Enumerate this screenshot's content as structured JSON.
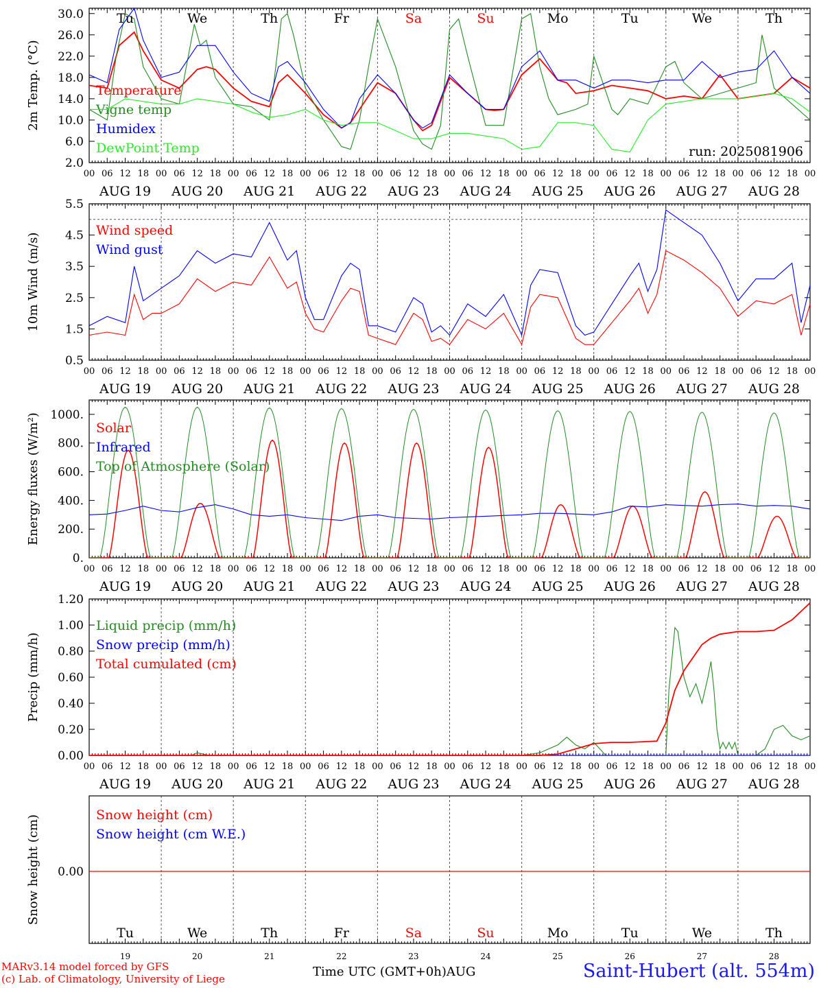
{
  "run_label": "run: 2025081906",
  "footer": {
    "model_line": "MARv3.14 model forced by GFS",
    "credit_line": "(c) Lab. of Climatology, University of Liege",
    "time_label": "Time UTC (GMT+0h)",
    "month_label": "AUG",
    "station": "Saint-Hubert (alt. 554m)"
  },
  "colors": {
    "red": "#ff0000",
    "dark_green": "#228b22",
    "blue": "#0000ff",
    "light_green": "#22ee22",
    "weekend": "#ff0000",
    "text": "#000000"
  },
  "days": [
    {
      "abbr": "Tu",
      "date": "AUG 19",
      "num": "19",
      "weekend": false
    },
    {
      "abbr": "We",
      "date": "AUG 20",
      "num": "20",
      "weekend": false
    },
    {
      "abbr": "Th",
      "date": "AUG 21",
      "num": "21",
      "weekend": false
    },
    {
      "abbr": "Fr",
      "date": "AUG 22",
      "num": "22",
      "weekend": false
    },
    {
      "abbr": "Sa",
      "date": "AUG 23",
      "num": "23",
      "weekend": true
    },
    {
      "abbr": "Su",
      "date": "AUG 24",
      "num": "24",
      "weekend": true
    },
    {
      "abbr": "Mo",
      "date": "AUG 25",
      "num": "25",
      "weekend": false
    },
    {
      "abbr": "Tu",
      "date": "AUG 26",
      "num": "26",
      "weekend": false
    },
    {
      "abbr": "We",
      "date": "AUG 27",
      "num": "27",
      "weekend": false
    },
    {
      "abbr": "Th",
      "date": "AUG 28",
      "num": "28",
      "weekend": false
    }
  ],
  "hour_ticks": [
    "00",
    "06",
    "12",
    "18"
  ],
  "chart_data": [
    {
      "id": "temperature",
      "type": "line",
      "ylabel": "2m Temp. (°C)",
      "ylim": [
        2,
        31
      ],
      "yticks": [
        "2.0",
        "6.0",
        "10.0",
        "14.0",
        "18.0",
        "22.0",
        "26.0",
        "30.0"
      ],
      "x_unit": "hours since AUG 19 00 UTC",
      "series": [
        {
          "name": "Temperature",
          "color": "#ff0000",
          "x": [
            0,
            6,
            10,
            15,
            18,
            24,
            30,
            36,
            39,
            42,
            48,
            54,
            60,
            63,
            66,
            72,
            78,
            84,
            87,
            90,
            96,
            102,
            108,
            111,
            114,
            120,
            126,
            132,
            135,
            138,
            144,
            150,
            156,
            159,
            162,
            168,
            174,
            180,
            186,
            192,
            198,
            204,
            210,
            216,
            222,
            228,
            234,
            240
          ],
          "y": [
            16.5,
            16,
            24,
            26.5,
            23,
            17.5,
            16,
            19.5,
            20,
            19.5,
            16,
            13.5,
            12.5,
            17,
            18.5,
            15,
            11,
            8.5,
            9.5,
            12,
            17,
            15,
            10,
            8,
            9,
            18,
            15,
            12,
            11.8,
            12,
            18.5,
            21.5,
            17.5,
            17,
            15,
            15.5,
            16.5,
            16,
            15.5,
            14,
            14.5,
            14,
            18.5,
            14,
            14.5,
            15,
            18,
            16
          ]
        },
        {
          "name": "Vigne temp",
          "color": "#228b22",
          "x": [
            0,
            6,
            9,
            12,
            15,
            18,
            24,
            30,
            33,
            35,
            37,
            39,
            42,
            48,
            54,
            60,
            64,
            66,
            68,
            72,
            78,
            84,
            87,
            90,
            93,
            96,
            102,
            108,
            111,
            114,
            117,
            120,
            123,
            126,
            132,
            138,
            144,
            147,
            150,
            153,
            156,
            162,
            166,
            168,
            174,
            176,
            180,
            186,
            192,
            195,
            198,
            204,
            210,
            216,
            222,
            224,
            228,
            234,
            240
          ],
          "y": [
            12,
            10,
            22,
            30,
            29,
            20,
            14,
            13,
            22,
            28,
            24,
            25,
            18,
            13,
            12.5,
            10,
            29,
            30,
            26,
            16,
            10,
            5,
            4.5,
            10,
            20,
            29,
            20,
            8,
            5.5,
            4.5,
            9,
            27,
            29,
            22,
            9,
            9,
            29,
            30,
            20,
            14,
            11,
            12,
            13,
            22,
            12,
            11,
            14,
            13,
            20,
            21,
            17,
            14,
            15,
            16,
            17,
            26,
            16,
            13,
            10
          ]
        },
        {
          "name": "Humidex",
          "color": "#0000ff",
          "x": [
            0,
            6,
            10,
            15,
            18,
            24,
            30,
            36,
            42,
            48,
            54,
            60,
            63,
            66,
            72,
            78,
            84,
            87,
            90,
            96,
            102,
            108,
            111,
            114,
            120,
            126,
            132,
            138,
            144,
            150,
            156,
            162,
            168,
            174,
            180,
            186,
            192,
            198,
            204,
            210,
            216,
            222,
            228,
            234,
            240
          ],
          "y": [
            18.5,
            17,
            27,
            31,
            25,
            18,
            19,
            24,
            24,
            19,
            15,
            13.5,
            20,
            21,
            17,
            12,
            8.5,
            9.5,
            14,
            18.5,
            15,
            10,
            8.5,
            9.5,
            18.5,
            15,
            12,
            12,
            20,
            23,
            17.5,
            17.5,
            16,
            17.5,
            17.5,
            17,
            17.5,
            17.5,
            21,
            18,
            19,
            19.5,
            23,
            18,
            15
          ]
        },
        {
          "name": "DewPoint Temp",
          "color": "#22ee22",
          "x": [
            0,
            6,
            12,
            18,
            24,
            30,
            36,
            42,
            48,
            54,
            60,
            66,
            72,
            78,
            84,
            90,
            96,
            102,
            108,
            114,
            120,
            126,
            132,
            138,
            144,
            150,
            156,
            162,
            168,
            174,
            180,
            186,
            192,
            198,
            204,
            210,
            216,
            222,
            228,
            234,
            240
          ],
          "y": [
            12,
            12,
            14,
            13.5,
            13,
            13,
            14,
            13.5,
            13,
            11.5,
            10.5,
            11,
            12,
            10,
            9,
            9.5,
            9.5,
            8,
            6.5,
            6.5,
            7.5,
            7.5,
            7,
            6.5,
            4.5,
            5,
            9.5,
            9.5,
            9,
            4.5,
            4,
            10,
            13,
            13.5,
            14,
            14,
            14,
            14.5,
            15,
            14,
            11.5
          ]
        }
      ]
    },
    {
      "id": "wind",
      "type": "line",
      "ylabel": "10m Wind (m/s)",
      "ylim": [
        0.5,
        5.5
      ],
      "yticks": [
        "0.5",
        "1.5",
        "2.5",
        "3.5",
        "4.5",
        "5.5"
      ],
      "reference_line": 5.0,
      "series": [
        {
          "name": "Wind speed",
          "color": "#ff0000",
          "x": [
            0,
            6,
            12,
            15,
            18,
            21,
            24,
            30,
            36,
            42,
            48,
            54,
            60,
            63,
            66,
            69,
            72,
            75,
            78,
            84,
            87,
            90,
            93,
            96,
            102,
            108,
            111,
            114,
            117,
            120,
            123,
            126,
            132,
            138,
            144,
            147,
            150,
            156,
            162,
            165,
            168,
            174,
            180,
            183,
            186,
            189,
            192,
            198,
            204,
            210,
            216,
            222,
            228,
            234,
            237,
            240
          ],
          "y": [
            1.3,
            1.4,
            1.3,
            2.6,
            1.8,
            2.0,
            2.0,
            2.3,
            3.1,
            2.7,
            3.0,
            2.9,
            3.8,
            3.3,
            2.8,
            3.0,
            2.0,
            1.5,
            1.4,
            2.4,
            2.8,
            2.7,
            1.3,
            1.2,
            1.0,
            2.0,
            1.8,
            1.1,
            1.2,
            1.0,
            1.4,
            1.8,
            1.5,
            2.0,
            1.0,
            2.2,
            2.6,
            2.5,
            1.2,
            1.0,
            1.0,
            1.7,
            2.4,
            2.8,
            2.0,
            2.6,
            4.0,
            3.7,
            3.3,
            2.8,
            1.9,
            2.4,
            2.3,
            2.6,
            1.3,
            2.3
          ]
        },
        {
          "name": "Wind gust",
          "color": "#0000ff",
          "x": [
            0,
            6,
            12,
            15,
            18,
            21,
            24,
            30,
            36,
            42,
            48,
            54,
            60,
            63,
            66,
            69,
            72,
            75,
            78,
            84,
            87,
            90,
            93,
            96,
            102,
            108,
            111,
            114,
            117,
            120,
            123,
            126,
            132,
            138,
            144,
            147,
            150,
            156,
            162,
            165,
            168,
            174,
            180,
            183,
            186,
            189,
            192,
            198,
            204,
            210,
            216,
            222,
            228,
            234,
            237,
            240
          ],
          "y": [
            1.6,
            1.9,
            1.7,
            3.5,
            2.4,
            2.6,
            2.8,
            3.2,
            4.0,
            3.6,
            3.9,
            3.8,
            4.9,
            4.3,
            3.7,
            4.0,
            2.5,
            1.8,
            1.8,
            3.2,
            3.6,
            3.4,
            1.6,
            1.6,
            1.4,
            2.5,
            2.3,
            1.4,
            1.6,
            1.3,
            1.8,
            2.3,
            1.9,
            2.6,
            1.3,
            2.9,
            3.4,
            3.3,
            1.6,
            1.3,
            1.4,
            2.3,
            3.2,
            3.6,
            2.7,
            3.4,
            5.3,
            4.9,
            4.5,
            3.6,
            2.4,
            3.1,
            3.1,
            3.6,
            1.7,
            2.9
          ]
        }
      ]
    },
    {
      "id": "energy",
      "type": "line",
      "ylabel": "Energy fluxes (W/m²)",
      "ylim": [
        0,
        1100
      ],
      "yticks": [
        "0.",
        "200.",
        "400.",
        "600.",
        "800.",
        "1000."
      ],
      "series": [
        {
          "name": "Solar",
          "color": "#ff0000",
          "daily_peak": [
            750,
            380,
            820,
            800,
            800,
            770,
            370,
            360,
            460,
            290
          ]
        },
        {
          "name": "Infrared",
          "color": "#0000ff",
          "x": [
            0,
            6,
            12,
            18,
            24,
            30,
            36,
            42,
            48,
            54,
            60,
            66,
            72,
            78,
            84,
            90,
            96,
            102,
            108,
            114,
            120,
            126,
            132,
            138,
            144,
            150,
            156,
            162,
            168,
            174,
            180,
            186,
            192,
            198,
            204,
            210,
            216,
            222,
            228,
            234,
            240
          ],
          "y": [
            300,
            305,
            330,
            360,
            330,
            320,
            350,
            370,
            340,
            300,
            290,
            300,
            280,
            270,
            260,
            290,
            300,
            280,
            275,
            270,
            280,
            285,
            290,
            295,
            300,
            310,
            310,
            305,
            300,
            320,
            360,
            355,
            370,
            365,
            360,
            370,
            375,
            360,
            365,
            360,
            340
          ]
        },
        {
          "name": "Top of Atmosphere (Solar)",
          "color": "#228b22",
          "daily_peak": [
            1050,
            1050,
            1045,
            1040,
            1035,
            1030,
            1025,
            1020,
            1015,
            1010
          ]
        }
      ]
    },
    {
      "id": "precip",
      "type": "line",
      "ylabel": "Precip (mm/h)",
      "ylim": [
        0,
        1.2
      ],
      "yticks": [
        "0.00",
        "0.20",
        "0.40",
        "0.60",
        "0.80",
        "1.00",
        "1.20"
      ],
      "series": [
        {
          "name": "Liquid precip (mm/h)",
          "color": "#228b22",
          "x": [
            0,
            34,
            36,
            38,
            40,
            144,
            150,
            156,
            159,
            162,
            165,
            168,
            172,
            192,
            193,
            195,
            196,
            198,
            200,
            202,
            204,
            206,
            207,
            208,
            209,
            210,
            211,
            212,
            213,
            214,
            215,
            216,
            222,
            225,
            228,
            231,
            234,
            237,
            240
          ],
          "y": [
            0,
            0,
            0.02,
            0.01,
            0,
            0,
            0.02,
            0.08,
            0.14,
            0.08,
            0.05,
            0.1,
            0,
            0,
            0.5,
            0.98,
            0.95,
            0.6,
            0.45,
            0.55,
            0.4,
            0.6,
            0.72,
            0.5,
            0.2,
            0.05,
            0.1,
            0.05,
            0.1,
            0.05,
            0.1,
            0,
            0,
            0.05,
            0.2,
            0.23,
            0.15,
            0.12,
            0.15
          ]
        },
        {
          "name": "Snow precip (mm/h)",
          "color": "#0000ff",
          "x": [
            0,
            240
          ],
          "y": [
            0,
            0
          ]
        },
        {
          "name": "Total cumulated (cm)",
          "color": "#ff0000",
          "x": [
            0,
            150,
            156,
            162,
            168,
            174,
            180,
            189,
            192,
            195,
            198,
            201,
            204,
            207,
            210,
            216,
            222,
            228,
            234,
            240
          ],
          "y": [
            0,
            0,
            0.01,
            0.05,
            0.09,
            0.1,
            0.1,
            0.11,
            0.25,
            0.5,
            0.65,
            0.75,
            0.85,
            0.9,
            0.93,
            0.95,
            0.95,
            0.96,
            1.04,
            1.17
          ]
        }
      ]
    },
    {
      "id": "snow",
      "type": "line",
      "ylabel": "Snow height (cm)",
      "yticks": [
        "0.00"
      ],
      "series": [
        {
          "name": "Snow height (cm)",
          "color": "#ff0000",
          "x": [
            0,
            240
          ],
          "y": [
            0,
            0
          ]
        },
        {
          "name": "Snow height (cm W.E.)",
          "color": "#0000ff",
          "x": [
            0,
            240
          ],
          "y": [
            0,
            0
          ]
        }
      ]
    }
  ]
}
